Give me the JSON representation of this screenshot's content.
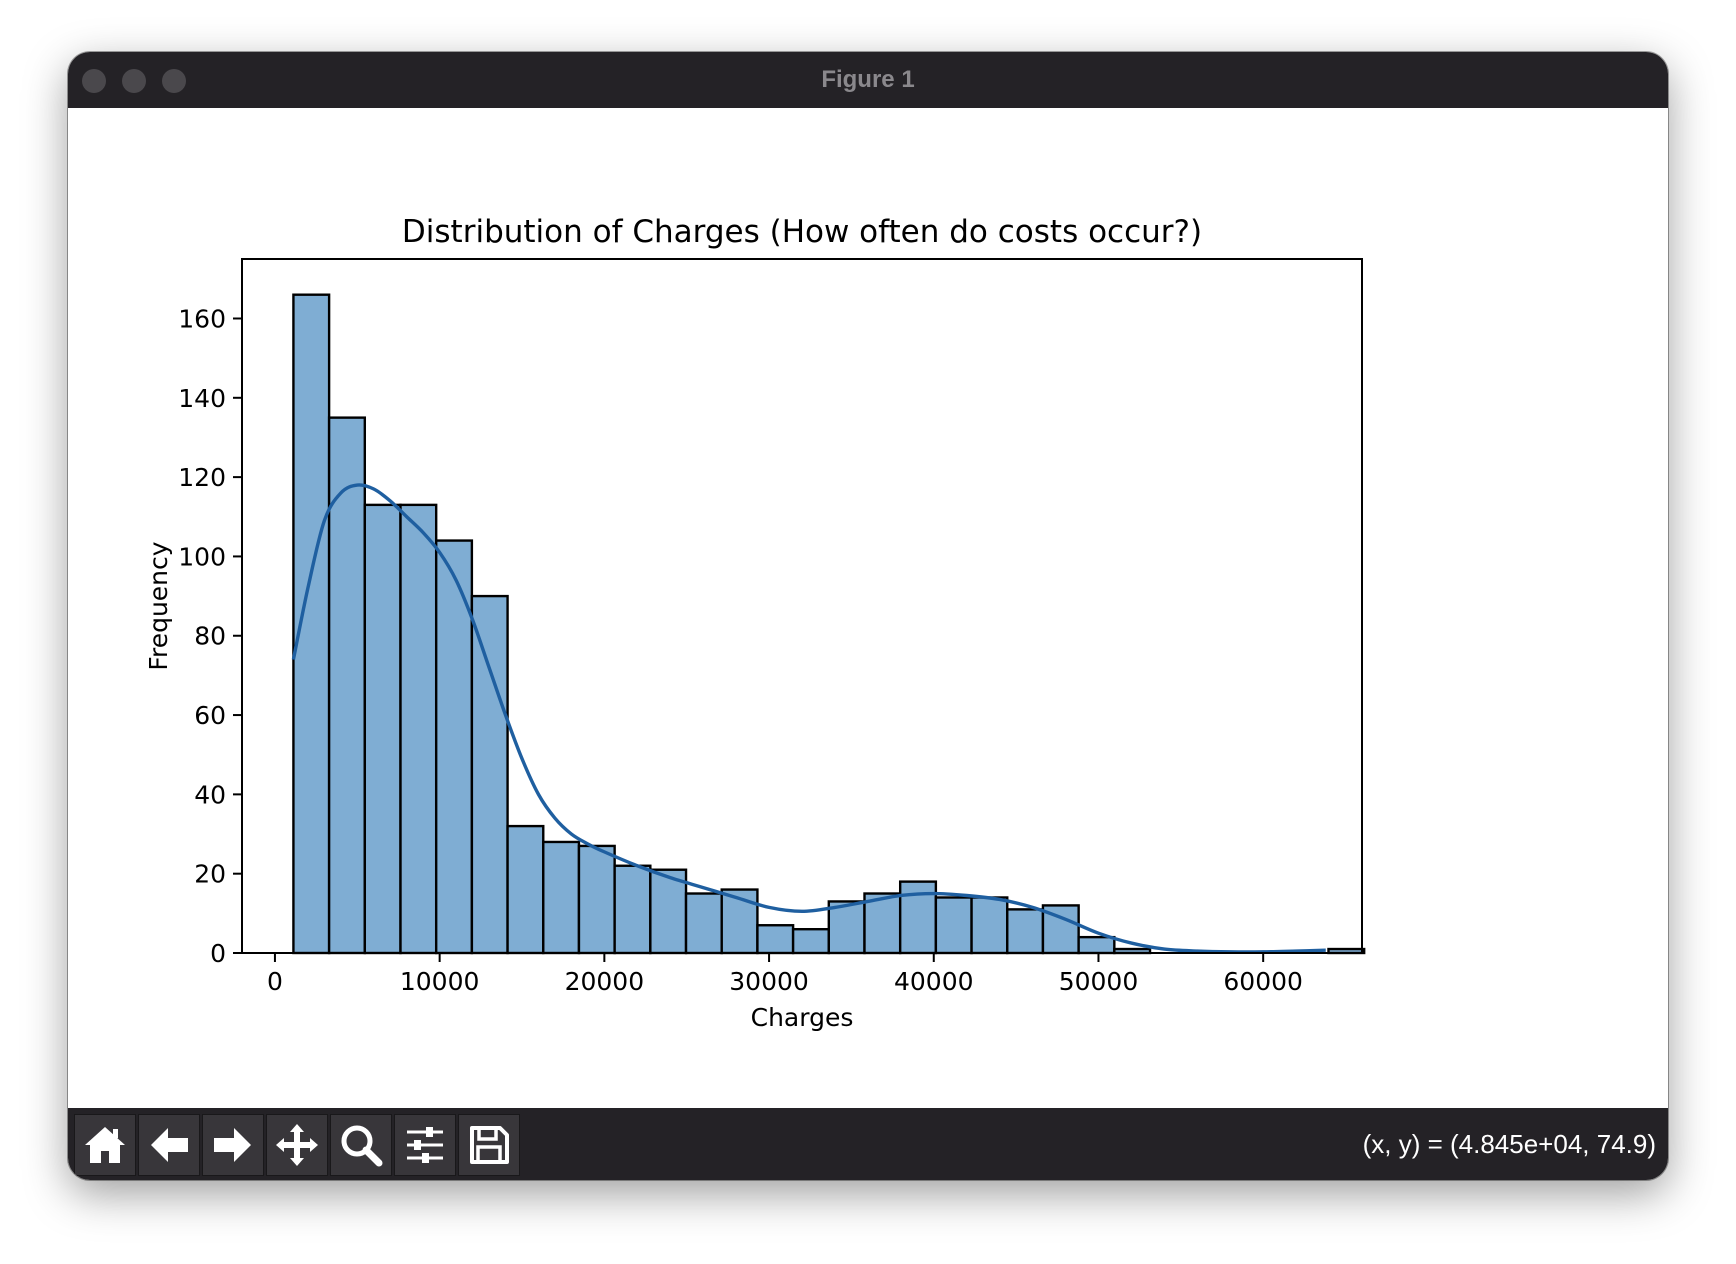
{
  "window": {
    "title": "Figure 1"
  },
  "toolbar": {
    "buttons": [
      {
        "name": "home-button",
        "icon": "home-icon"
      },
      {
        "name": "back-button",
        "icon": "arrow-left-icon"
      },
      {
        "name": "forward-button",
        "icon": "arrow-right-icon"
      },
      {
        "name": "pan-button",
        "icon": "move-icon"
      },
      {
        "name": "zoom-button",
        "icon": "magnifier-icon"
      },
      {
        "name": "configure-subplots-button",
        "icon": "sliders-icon"
      },
      {
        "name": "save-button",
        "icon": "floppy-disk-icon"
      }
    ],
    "coordinates": "(x, y) = (4.845e+04, 74.9)"
  },
  "chart_data": {
    "type": "bar",
    "title": "Distribution of Charges (How often do costs occur?)",
    "xlabel": "Charges",
    "ylabel": "Frequency",
    "xlim": [
      -2000,
      66000
    ],
    "ylim": [
      0,
      175
    ],
    "xticks": [
      0,
      10000,
      20000,
      30000,
      40000,
      50000,
      60000
    ],
    "yticks": [
      0,
      20,
      40,
      60,
      80,
      100,
      120,
      140,
      160
    ],
    "bin_start": 1122,
    "bin_width": 2167,
    "counts": [
      166,
      135,
      113,
      113,
      104,
      90,
      32,
      28,
      27,
      22,
      21,
      15,
      16,
      7,
      6,
      13,
      15,
      18,
      14,
      14,
      11,
      12,
      4,
      1,
      0,
      0,
      0,
      0,
      0,
      1
    ],
    "kde": {
      "x": [
        1122,
        2000,
        3000,
        4000,
        5000,
        6000,
        7000,
        8000,
        9000,
        10000,
        11000,
        12000,
        13000,
        14000,
        15000,
        16000,
        17000,
        18000,
        19000,
        20000,
        22000,
        24000,
        26000,
        28000,
        30000,
        32000,
        34000,
        36000,
        38000,
        40000,
        42000,
        44000,
        46000,
        48000,
        50000,
        52000,
        54000,
        56000,
        58000,
        60000,
        62000,
        63800
      ],
      "y": [
        74,
        92,
        109,
        116,
        118,
        117,
        114,
        110,
        106,
        101,
        94,
        84,
        72,
        60,
        49,
        40,
        34,
        30,
        27.5,
        25.5,
        22,
        19,
        16.5,
        14,
        11.5,
        10.5,
        11.5,
        13,
        14.5,
        15,
        14.5,
        13.5,
        11.5,
        8.5,
        5,
        2.5,
        1,
        0.5,
        0.3,
        0.3,
        0.5,
        0.7
      ],
      "color": "#1f5fa0"
    },
    "bar_color": "#7fadd3",
    "edge_color": "#000000",
    "grid": false
  }
}
